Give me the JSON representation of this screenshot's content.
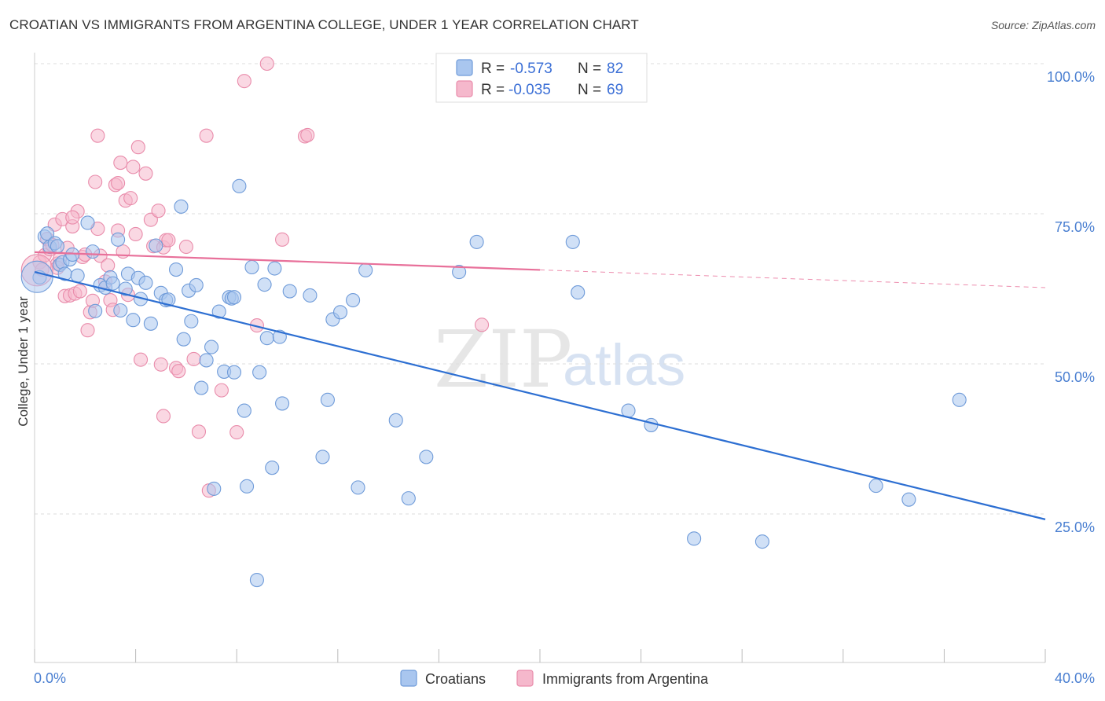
{
  "title": "CROATIAN VS IMMIGRANTS FROM ARGENTINA COLLEGE, UNDER 1 YEAR CORRELATION CHART",
  "source": "Source: ZipAtlas.com",
  "watermark": {
    "zip": "ZIP",
    "atlas": "atlas"
  },
  "legend_top": {
    "rows": [
      {
        "r_label": "R =",
        "r_value": "-0.573",
        "n_label": "N =",
        "n_value": "82"
      },
      {
        "r_label": "R =",
        "r_value": "-0.035",
        "n_label": "N =",
        "n_value": "69"
      }
    ]
  },
  "legend_bottom": {
    "items": [
      "Croatians",
      "Immigrants from Argentina"
    ]
  },
  "colors": {
    "croatians_fill": "#a9c6ef",
    "croatians_stroke": "#6f9bd9",
    "croatians_line": "#2d6fd2",
    "argentina_fill": "#f5b8cc",
    "argentina_stroke": "#e98cab",
    "argentina_line": "#e8709a",
    "tick_label": "#4a7fd1",
    "grid": "#dddddd"
  },
  "chart_data": {
    "type": "scatter",
    "title": "CROATIAN VS IMMIGRANTS FROM ARGENTINA COLLEGE, UNDER 1 YEAR CORRELATION CHART",
    "xlabel": "",
    "ylabel": "College, Under 1 year",
    "x_tick_labels": [
      "0.0%",
      "40.0%"
    ],
    "y_tick_labels": [
      "25.0%",
      "50.0%",
      "75.0%",
      "100.0%"
    ],
    "y_ticks": [
      25,
      50,
      75,
      100
    ],
    "xlim": [
      0,
      40
    ],
    "ylim": [
      2,
      100
    ],
    "grid": true,
    "legend_placement": "top-center",
    "series": [
      {
        "name": "Croatians",
        "R": -0.573,
        "N": 82,
        "trend": {
          "x": [
            0,
            40
          ],
          "y": [
            65.3,
            24.1
          ],
          "solid_to_x": 40
        },
        "points": [
          [
            0.2,
            64.4
          ],
          [
            0.4,
            71.2
          ],
          [
            0.5,
            71.7
          ],
          [
            0.6,
            69.5
          ],
          [
            0.8,
            70.1
          ],
          [
            0.9,
            69.6
          ],
          [
            1.0,
            66.5
          ],
          [
            1.1,
            66.9
          ],
          [
            1.2,
            65.0
          ],
          [
            1.4,
            67.4
          ],
          [
            1.5,
            68.2
          ],
          [
            1.7,
            64.7
          ],
          [
            2.1,
            73.5
          ],
          [
            2.3,
            68.7
          ],
          [
            2.4,
            58.8
          ],
          [
            2.6,
            63.1
          ],
          [
            2.8,
            62.7
          ],
          [
            3.0,
            64.4
          ],
          [
            3.1,
            63.4
          ],
          [
            3.3,
            70.7
          ],
          [
            3.4,
            58.9
          ],
          [
            3.6,
            62.5
          ],
          [
            3.7,
            65.0
          ],
          [
            3.9,
            57.3
          ],
          [
            4.1,
            64.3
          ],
          [
            4.2,
            60.8
          ],
          [
            4.4,
            63.5
          ],
          [
            4.6,
            56.7
          ],
          [
            4.8,
            69.7
          ],
          [
            5.0,
            61.8
          ],
          [
            5.2,
            60.6
          ],
          [
            5.3,
            60.7
          ],
          [
            5.6,
            65.7
          ],
          [
            5.8,
            76.2
          ],
          [
            5.9,
            54.1
          ],
          [
            6.1,
            62.2
          ],
          [
            6.2,
            57.1
          ],
          [
            6.4,
            63.1
          ],
          [
            6.6,
            46.0
          ],
          [
            6.8,
            50.6
          ],
          [
            7.0,
            52.8
          ],
          [
            7.1,
            29.2
          ],
          [
            7.3,
            58.7
          ],
          [
            7.5,
            48.7
          ],
          [
            7.7,
            61.1
          ],
          [
            7.9,
            48.6
          ],
          [
            7.8,
            60.9
          ],
          [
            7.9,
            61.1
          ],
          [
            8.1,
            79.6
          ],
          [
            8.3,
            42.2
          ],
          [
            8.4,
            29.6
          ],
          [
            8.6,
            66.1
          ],
          [
            8.8,
            14.0
          ],
          [
            8.9,
            48.6
          ],
          [
            9.1,
            63.2
          ],
          [
            9.2,
            54.3
          ],
          [
            9.4,
            32.7
          ],
          [
            9.5,
            65.9
          ],
          [
            9.7,
            54.5
          ],
          [
            9.8,
            43.4
          ],
          [
            10.1,
            62.1
          ],
          [
            10.9,
            61.4
          ],
          [
            11.4,
            34.5
          ],
          [
            11.6,
            44.0
          ],
          [
            11.8,
            57.4
          ],
          [
            12.1,
            58.6
          ],
          [
            12.6,
            60.6
          ],
          [
            12.8,
            29.4
          ],
          [
            13.1,
            65.6
          ],
          [
            14.3,
            40.6
          ],
          [
            14.8,
            27.6
          ],
          [
            15.5,
            34.5
          ],
          [
            16.8,
            65.3
          ],
          [
            17.5,
            70.3
          ],
          [
            21.3,
            70.3
          ],
          [
            21.5,
            61.9
          ],
          [
            23.5,
            42.2
          ],
          [
            24.4,
            39.8
          ],
          [
            26.1,
            20.9
          ],
          [
            28.8,
            20.4
          ],
          [
            33.3,
            29.7
          ],
          [
            34.6,
            27.4
          ],
          [
            36.6,
            44.0
          ]
        ],
        "large_points": [
          [
            0.1,
            64.5
          ]
        ]
      },
      {
        "name": "Immigrants from Argentina",
        "R": -0.035,
        "N": 69,
        "trend": {
          "x": [
            0,
            40
          ],
          "y": [
            68.6,
            62.7
          ],
          "solid_to_x": 20
        },
        "points": [
          [
            0.2,
            66.9
          ],
          [
            0.3,
            65.7
          ],
          [
            0.4,
            68.1
          ],
          [
            0.5,
            70.8
          ],
          [
            0.6,
            69.1
          ],
          [
            0.7,
            69.8
          ],
          [
            0.8,
            73.2
          ],
          [
            0.9,
            66.7
          ],
          [
            1.0,
            67.5
          ],
          [
            1.1,
            74.1
          ],
          [
            1.2,
            61.3
          ],
          [
            1.3,
            69.3
          ],
          [
            1.4,
            61.4
          ],
          [
            1.5,
            72.9
          ],
          [
            1.6,
            61.7
          ],
          [
            1.7,
            75.4
          ],
          [
            1.9,
            67.8
          ],
          [
            1.8,
            62.1
          ],
          [
            2.0,
            68.2
          ],
          [
            2.1,
            55.6
          ],
          [
            2.2,
            58.6
          ],
          [
            2.3,
            60.5
          ],
          [
            2.4,
            80.3
          ],
          [
            2.5,
            72.5
          ],
          [
            2.6,
            68.0
          ],
          [
            2.5,
            88.0
          ],
          [
            2.8,
            63.7
          ],
          [
            2.9,
            66.4
          ],
          [
            3.0,
            60.6
          ],
          [
            3.1,
            59.0
          ],
          [
            3.2,
            79.8
          ],
          [
            3.3,
            80.1
          ],
          [
            3.4,
            83.5
          ],
          [
            3.5,
            68.7
          ],
          [
            3.6,
            77.2
          ],
          [
            3.7,
            61.5
          ],
          [
            3.8,
            77.6
          ],
          [
            3.9,
            82.8
          ],
          [
            4.0,
            71.6
          ],
          [
            4.1,
            86.1
          ],
          [
            4.2,
            50.7
          ],
          [
            4.4,
            81.7
          ],
          [
            4.6,
            74.0
          ],
          [
            4.7,
            69.6
          ],
          [
            4.9,
            75.5
          ],
          [
            5.0,
            49.9
          ],
          [
            5.1,
            69.4
          ],
          [
            5.2,
            70.6
          ],
          [
            5.1,
            41.3
          ],
          [
            5.3,
            70.6
          ],
          [
            5.6,
            49.3
          ],
          [
            5.7,
            48.8
          ],
          [
            6.0,
            69.5
          ],
          [
            6.3,
            50.8
          ],
          [
            6.5,
            38.7
          ],
          [
            6.8,
            88.0
          ],
          [
            6.9,
            28.9
          ],
          [
            7.4,
            45.6
          ],
          [
            8.0,
            38.6
          ],
          [
            8.3,
            97.1
          ],
          [
            8.8,
            56.4
          ],
          [
            9.2,
            100.0
          ],
          [
            9.8,
            70.7
          ],
          [
            10.7,
            87.9
          ],
          [
            10.8,
            88.1
          ],
          [
            17.7,
            56.5
          ],
          [
            1.5,
            74.4
          ],
          [
            3.3,
            72.2
          ],
          [
            0.9,
            66.0
          ]
        ],
        "large_points": [
          [
            0.1,
            65.6
          ]
        ]
      }
    ]
  }
}
